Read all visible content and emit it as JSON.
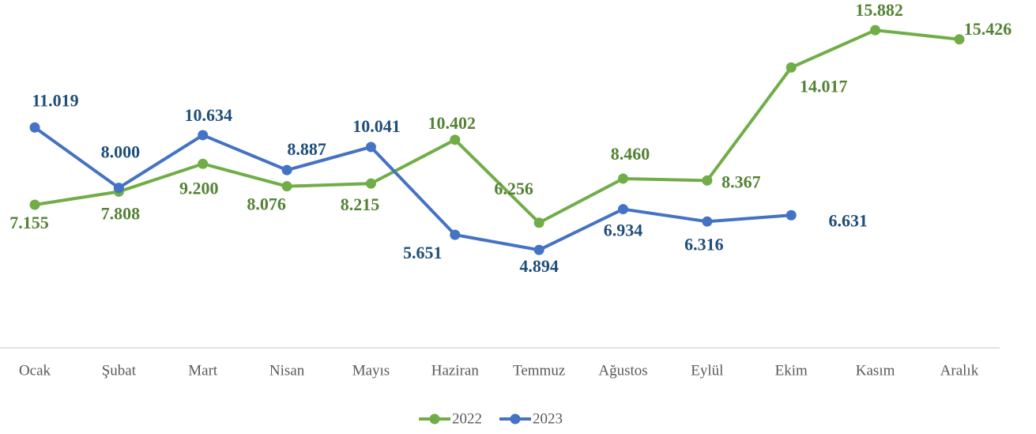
{
  "chart_data": {
    "type": "line",
    "categories": [
      "Ocak",
      "Şubat",
      "Mart",
      "Nisan",
      "Mayıs",
      "Haziran",
      "Temmuz",
      "Ağustos",
      "Eylül",
      "Ekim",
      "Kasım",
      "Aralık"
    ],
    "series": [
      {
        "name": "2022",
        "color": "#70ad47",
        "label_color": "#548235",
        "values": [
          7.155,
          7.808,
          9.2,
          8.076,
          8.215,
          10.402,
          6.256,
          8.46,
          8.367,
          14.017,
          15.882,
          15.426
        ],
        "value_labels": [
          "7.155",
          "7.808",
          "9.200",
          "8.076",
          "8.215",
          "10.402",
          "6.256",
          "8.460",
          "8.367",
          "14.017",
          "15.882",
          "15.426"
        ]
      },
      {
        "name": "2023",
        "color": "#4472c4",
        "label_color": "#1f4e79",
        "values": [
          11.019,
          8.0,
          10.634,
          8.887,
          10.041,
          5.651,
          4.894,
          6.934,
          6.316,
          6.631,
          null,
          null
        ],
        "value_labels": [
          "11.019",
          "8.000",
          "10.634",
          "8.887",
          "10.041",
          "5.651",
          "4.894",
          "6.934",
          "6.316",
          "6.631",
          null,
          null
        ]
      }
    ],
    "legend": "bottom"
  }
}
